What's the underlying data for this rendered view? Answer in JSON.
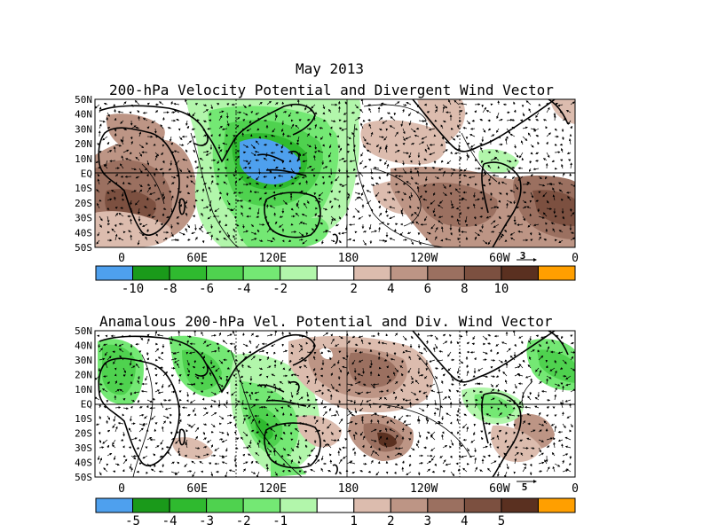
{
  "header": {
    "date": "May 2013",
    "top_title": "200-hPa Velocity Potential and Divergent Wind Vector",
    "bottom_title": "Anamalous 200-hPa Vel. Potential and Div. Wind Vector"
  },
  "lat_labels": [
    "50N",
    "40N",
    "30N",
    "20N",
    "10N",
    "EQ",
    "10S",
    "20S",
    "30S",
    "40S",
    "50S"
  ],
  "lon_labels": [
    "0",
    "60E",
    "120E",
    "180",
    "120W",
    "60W",
    "0"
  ],
  "top_panel": {
    "vector_ref": "3",
    "colorbar": {
      "colors": [
        "#4ea0ee",
        "#1a9a1a",
        "#2fba2f",
        "#4fd24f",
        "#74e874",
        "#b2f6ab",
        "#ffffff",
        "#dcbcae",
        "#bd9585",
        "#9b7060",
        "#7c5040",
        "#5a3020",
        "#ff9f00"
      ],
      "labels": [
        "-10",
        "-8",
        "-6",
        "-4",
        "-2",
        "2",
        "4",
        "6",
        "8",
        "10"
      ]
    }
  },
  "bottom_panel": {
    "vector_ref": "5",
    "colorbar": {
      "colors": [
        "#4ea0ee",
        "#1a9a1a",
        "#2fba2f",
        "#4fd24f",
        "#74e874",
        "#b2f6ab",
        "#ffffff",
        "#dcbcae",
        "#bd9585",
        "#9b7060",
        "#7c5040",
        "#5a3020",
        "#ff9f00"
      ],
      "labels": [
        "-5",
        "-4",
        "-3",
        "-2",
        "-1",
        "1",
        "2",
        "3",
        "4",
        "5"
      ]
    }
  }
}
